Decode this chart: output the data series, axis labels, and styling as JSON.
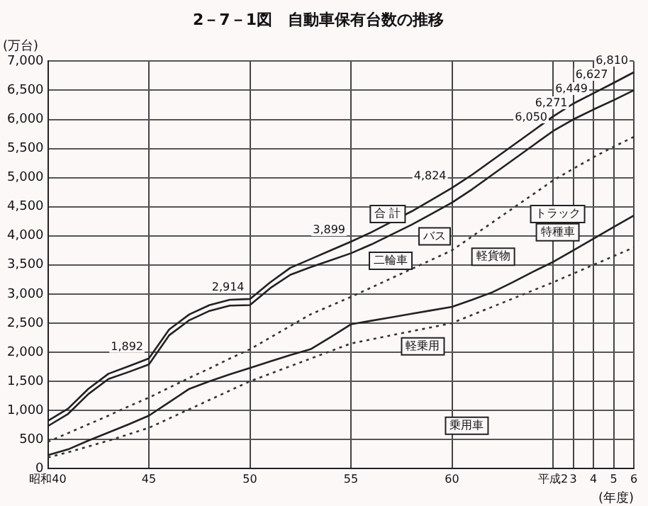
{
  "chart_data": {
    "type": "line",
    "title": "2－7－1図　自動車保有台数の推移",
    "ylabel": "(万台)",
    "xlabel": "(年度)",
    "categories": [
      "昭和40",
      null,
      null,
      null,
      null,
      "45",
      null,
      null,
      null,
      null,
      "50",
      null,
      null,
      null,
      null,
      "55",
      null,
      null,
      null,
      null,
      "60",
      null,
      null,
      null,
      null,
      "平成2",
      "3",
      "4",
      "5",
      "6"
    ],
    "series": [
      {
        "color": "#222222",
        "line_style": "solid",
        "values": [
          820,
          1030,
          1370,
          1630,
          1760,
          1892,
          2390,
          2650,
          2810,
          2900,
          2914,
          3200,
          3450,
          3600,
          3750,
          3899,
          4060,
          4240,
          4420,
          4620,
          4824,
          5050,
          5300,
          5550,
          5800,
          6050,
          6271,
          6449,
          6627,
          6810
        ],
        "value_labels": [
          null,
          null,
          null,
          null,
          null,
          "1,892",
          null,
          null,
          null,
          null,
          "2,914",
          null,
          null,
          null,
          null,
          "3,899",
          null,
          null,
          null,
          null,
          "4,824",
          null,
          null,
          null,
          null,
          "6,050",
          "6,271",
          "6,449",
          "6,627",
          "6,810"
        ]
      },
      {
        "color": "#222222",
        "line_style": "solid",
        "values": [
          730,
          940,
          1280,
          1540,
          1660,
          1790,
          2290,
          2550,
          2710,
          2800,
          2810,
          3100,
          3330,
          3460,
          3580,
          3700,
          3850,
          4020,
          4190,
          4380,
          4570,
          4800,
          5050,
          5300,
          5550,
          5800,
          6000,
          6170,
          6330,
          6500
        ]
      },
      {
        "color": "#333333",
        "line_style": "dotted",
        "values": [
          460,
          610,
          760,
          910,
          1070,
          1220,
          1390,
          1560,
          1720,
          1890,
          2050,
          2250,
          2450,
          2650,
          2800,
          2950,
          3110,
          3270,
          3430,
          3590,
          3750,
          3990,
          4230,
          4470,
          4710,
          4950,
          5150,
          5350,
          5530,
          5700
        ]
      },
      {
        "color": "#222222",
        "line_style": "solid",
        "values": [
          230,
          330,
          480,
          620,
          760,
          910,
          1140,
          1370,
          1500,
          1620,
          1730,
          1840,
          1950,
          2050,
          2260,
          2480,
          2540,
          2600,
          2660,
          2720,
          2780,
          2900,
          3030,
          3200,
          3380,
          3550,
          3750,
          3950,
          4150,
          4350
        ]
      },
      {
        "color": "#333333",
        "line_style": "dotted",
        "values": [
          190,
          280,
          380,
          480,
          590,
          700,
          860,
          1020,
          1180,
          1340,
          1500,
          1630,
          1760,
          1890,
          2020,
          2150,
          2220,
          2290,
          2360,
          2430,
          2500,
          2640,
          2780,
          2920,
          3060,
          3200,
          3350,
          3500,
          3650,
          3800
        ]
      }
    ],
    "annotations": [
      "合 計",
      "二輪車",
      "バス",
      "トラック",
      "特種車",
      "軽貨物",
      "軽乗用",
      "乗用車"
    ],
    "ylim": [
      0,
      7000
    ],
    "yticks": [
      0,
      500,
      {
        "value": 1000,
        "label": "1,000"
      },
      {
        "value": 1500,
        "label": "1,500"
      },
      {
        "value": 2000,
        "label": "2,000"
      },
      {
        "value": 2500,
        "label": "2,500"
      },
      {
        "value": 3000,
        "label": "3,000"
      },
      {
        "value": 3500,
        "label": "3,500"
      },
      {
        "value": 4000,
        "label": "4,000"
      },
      {
        "value": 4500,
        "label": "4,500"
      },
      {
        "value": 5000,
        "label": "5,000"
      },
      {
        "value": 5500,
        "label": "5,500"
      },
      {
        "value": 6000,
        "label": "6,000"
      },
      {
        "value": 6500,
        "label": "6,500"
      },
      {
        "value": 7000,
        "label": "7,000"
      }
    ],
    "grid": true,
    "legend": false,
    "marker": "none"
  }
}
